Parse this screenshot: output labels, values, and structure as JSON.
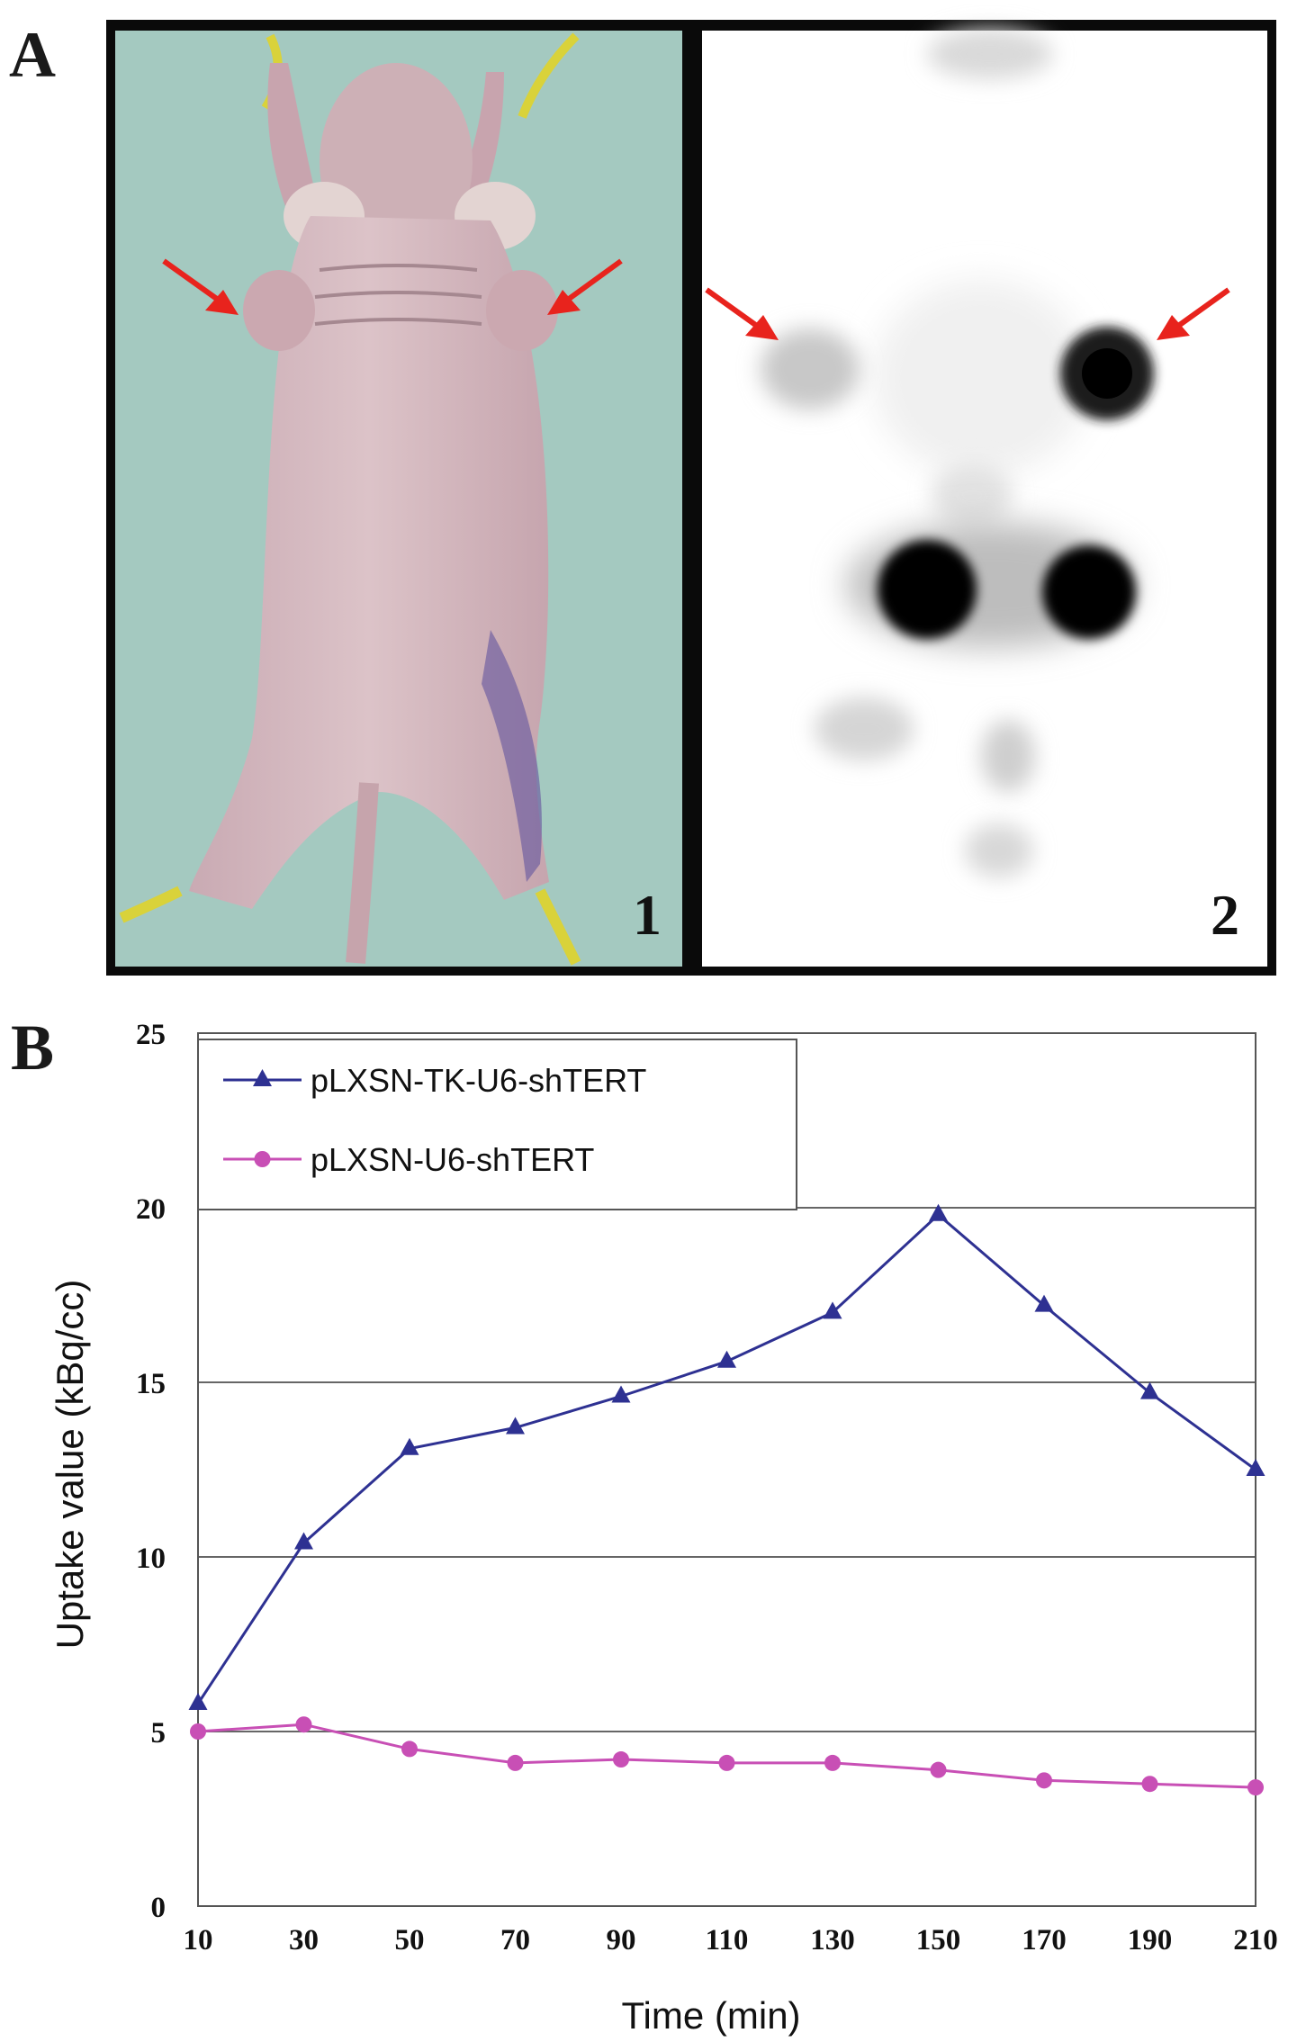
{
  "panels": {
    "a_label": "A",
    "b_label": "B",
    "photo_number": "1",
    "scan_number": "2"
  },
  "chart_data": {
    "type": "line",
    "title": "",
    "xlabel": "Time (min)",
    "ylabel": "Uptake value (kBq/cc)",
    "x": [
      10,
      30,
      50,
      70,
      90,
      110,
      130,
      150,
      170,
      190,
      210
    ],
    "xlim": [
      10,
      210
    ],
    "ylim": [
      0,
      25
    ],
    "yticks": [
      0,
      5,
      10,
      15,
      20,
      25
    ],
    "grid": "horizontal",
    "legend": "top-left",
    "series": [
      {
        "name": "pLXSN-TK-U6-shTERT",
        "marker": "triangle",
        "color": "#2e3192",
        "values": [
          5.8,
          10.4,
          13.1,
          13.7,
          14.6,
          15.6,
          17.0,
          19.8,
          17.2,
          14.7,
          12.5
        ]
      },
      {
        "name": "pLXSN-U6-shTERT",
        "marker": "circle",
        "color": "#c84fb5",
        "values": [
          5.0,
          5.2,
          4.5,
          4.1,
          4.2,
          4.1,
          4.1,
          3.9,
          3.6,
          3.5,
          3.4
        ]
      }
    ]
  }
}
